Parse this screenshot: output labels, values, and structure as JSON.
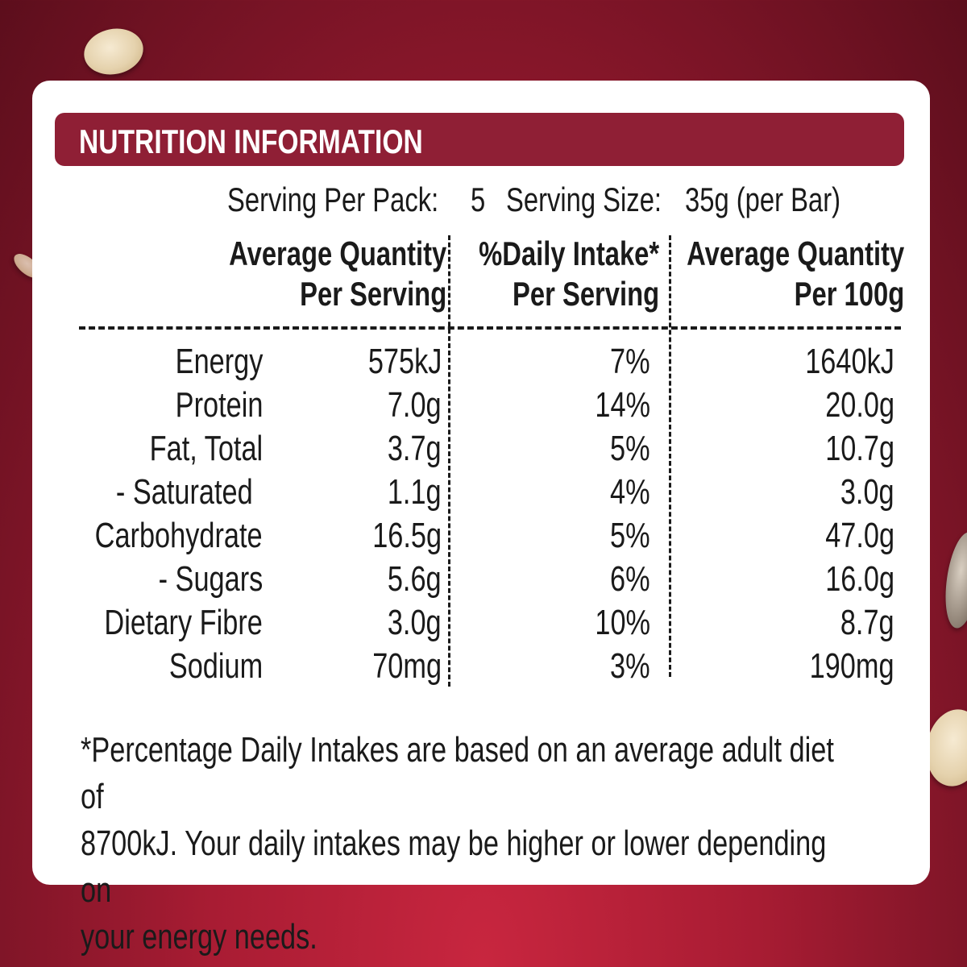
{
  "title": "NUTRITION INFORMATION",
  "serving": {
    "per_pack_label": "Serving Per Pack:",
    "per_pack_value": "5",
    "size_label": "Serving Size:",
    "size_value": "35g (per Bar)"
  },
  "columns": {
    "per_serving": [
      "Average Quantity",
      "Per Serving"
    ],
    "daily_intake": [
      "%Daily Intake*",
      "Per Serving"
    ],
    "per_100g": [
      "Average Quantity",
      "Per 100g"
    ]
  },
  "rows": [
    {
      "name": "Energy",
      "per_serving": "575kJ",
      "daily_intake": "7%",
      "per_100g": "1640kJ"
    },
    {
      "name": "Protein",
      "per_serving": "7.0g",
      "daily_intake": "14%",
      "per_100g": "20.0g"
    },
    {
      "name": "Fat, Total",
      "per_serving": "3.7g",
      "daily_intake": "5%",
      "per_100g": "10.7g"
    },
    {
      "name": "- Saturated",
      "per_serving": "1.1g",
      "daily_intake": "4%",
      "per_100g": "3.0g"
    },
    {
      "name": "Carbohydrate",
      "per_serving": "16.5g",
      "daily_intake": "5%",
      "per_100g": "47.0g"
    },
    {
      "name": "- Sugars",
      "per_serving": "5.6g",
      "daily_intake": "6%",
      "per_100g": "16.0g"
    },
    {
      "name": "Dietary Fibre",
      "per_serving": "3.0g",
      "daily_intake": "10%",
      "per_100g": "8.7g"
    },
    {
      "name": "Sodium",
      "per_serving": "70mg",
      "daily_intake": "3%",
      "per_100g": "190mg"
    }
  ],
  "footnote": [
    "*Percentage Daily Intakes are based on an average adult diet of",
    "8700kJ. Your daily intakes may be higher or lower depending on",
    "your energy needs."
  ]
}
